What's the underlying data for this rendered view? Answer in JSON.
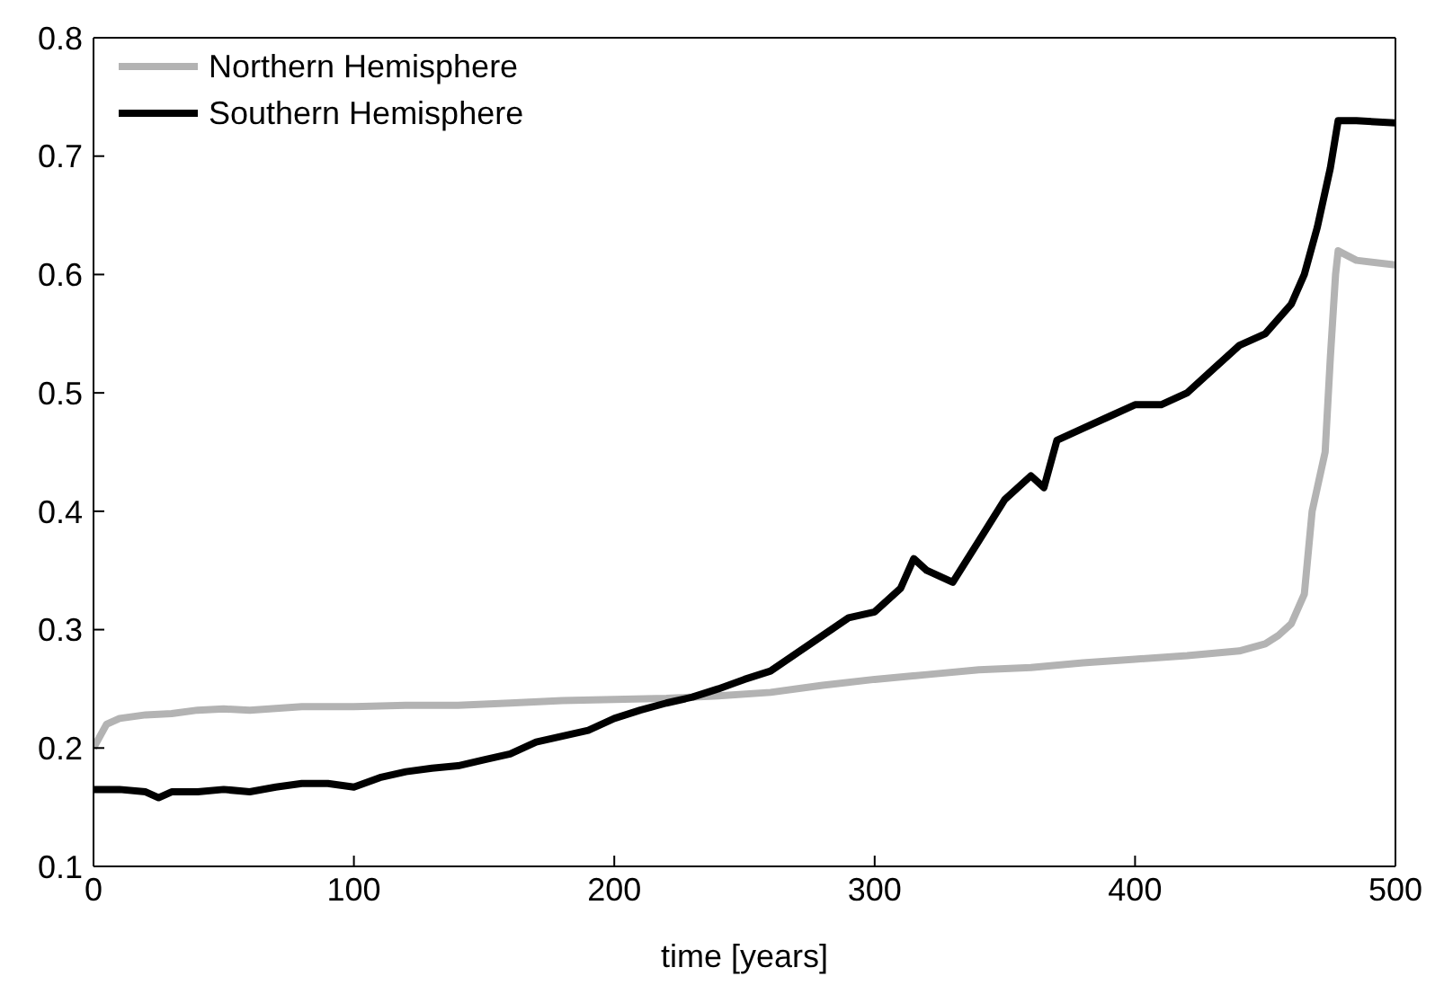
{
  "chart_data": {
    "type": "line",
    "xlabel": "time [years]",
    "xlim": [
      0,
      500
    ],
    "xticks": [
      0,
      100,
      200,
      300,
      400,
      500
    ],
    "ylim": [
      0.1,
      0.8
    ],
    "yticks": [
      0.1,
      0.2,
      0.3,
      0.4,
      0.5,
      0.6,
      0.7,
      0.8
    ],
    "legend": "top left",
    "marker": "none",
    "line_style": "solid",
    "series": [
      {
        "name": "Northern Hemisphere",
        "color": "#b3b3b3",
        "x": [
          0,
          5,
          10,
          20,
          30,
          40,
          50,
          60,
          80,
          100,
          120,
          140,
          160,
          180,
          200,
          220,
          240,
          260,
          280,
          300,
          320,
          340,
          360,
          380,
          400,
          420,
          440,
          450,
          455,
          460,
          465,
          468,
          470,
          473,
          475,
          477,
          478,
          485,
          500
        ],
        "values": [
          0.2,
          0.22,
          0.225,
          0.228,
          0.229,
          0.232,
          0.233,
          0.232,
          0.235,
          0.235,
          0.236,
          0.236,
          0.238,
          0.24,
          0.241,
          0.242,
          0.244,
          0.247,
          0.253,
          0.258,
          0.262,
          0.266,
          0.268,
          0.272,
          0.275,
          0.278,
          0.282,
          0.288,
          0.295,
          0.305,
          0.33,
          0.4,
          0.42,
          0.45,
          0.53,
          0.6,
          0.62,
          0.612,
          0.608
        ]
      },
      {
        "name": "Southern Hemisphere",
        "color": "#000000",
        "x": [
          0,
          10,
          20,
          25,
          30,
          40,
          50,
          60,
          70,
          80,
          90,
          100,
          110,
          120,
          130,
          140,
          150,
          160,
          170,
          180,
          190,
          200,
          210,
          220,
          230,
          240,
          250,
          260,
          270,
          280,
          290,
          300,
          310,
          315,
          320,
          330,
          340,
          350,
          360,
          365,
          370,
          380,
          390,
          400,
          410,
          420,
          430,
          440,
          450,
          460,
          465,
          470,
          475,
          478,
          485,
          500
        ],
        "values": [
          0.165,
          0.165,
          0.163,
          0.158,
          0.163,
          0.163,
          0.165,
          0.163,
          0.167,
          0.17,
          0.17,
          0.167,
          0.175,
          0.18,
          0.183,
          0.185,
          0.19,
          0.195,
          0.205,
          0.21,
          0.215,
          0.225,
          0.232,
          0.238,
          0.243,
          0.25,
          0.258,
          0.265,
          0.28,
          0.295,
          0.31,
          0.315,
          0.335,
          0.36,
          0.35,
          0.34,
          0.375,
          0.41,
          0.43,
          0.42,
          0.46,
          0.47,
          0.48,
          0.49,
          0.49,
          0.5,
          0.52,
          0.54,
          0.55,
          0.575,
          0.6,
          0.64,
          0.69,
          0.73,
          0.73,
          0.728
        ]
      }
    ]
  }
}
